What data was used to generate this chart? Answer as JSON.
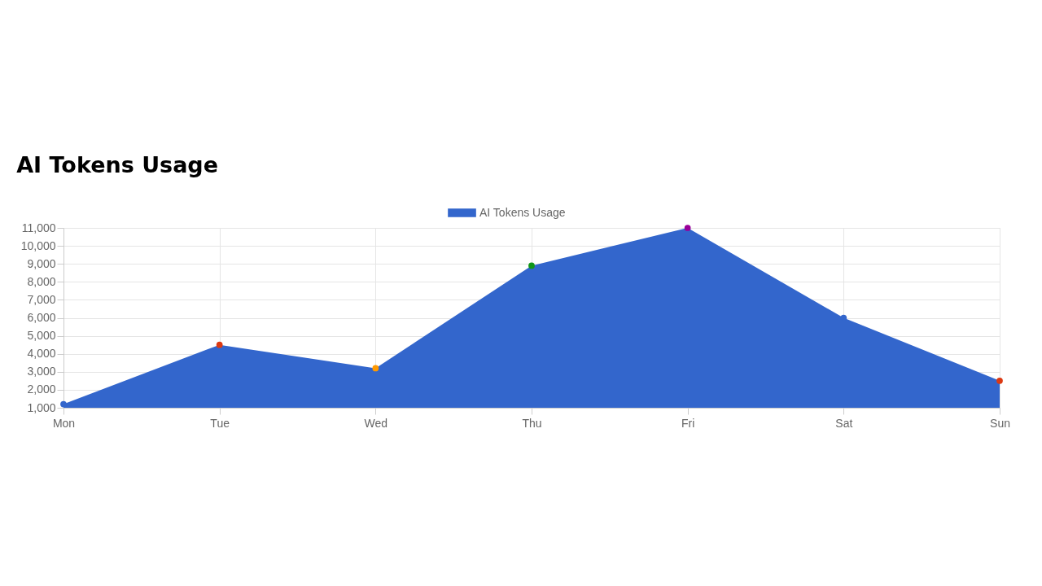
{
  "chart_data": {
    "type": "area",
    "title": "AI Tokens Usage",
    "categories": [
      "Mon",
      "Tue",
      "Wed",
      "Thu",
      "Fri",
      "Sat",
      "Sun"
    ],
    "series": [
      {
        "name": "AI Tokens Usage",
        "color": "#3366cc",
        "values": [
          1200,
          4500,
          3200,
          8900,
          11000,
          6000,
          2500
        ]
      }
    ],
    "colors": [
      "#3366cc",
      "#dc3912",
      "#ff9900",
      "#109618",
      "#990099",
      "#3366cc",
      "#dc3912"
    ],
    "ylim": [
      1000,
      11000
    ],
    "yticks": [
      {
        "value": 1000,
        "label": "1,000"
      },
      {
        "value": 2000,
        "label": "2,000"
      },
      {
        "value": 3000,
        "label": "3,000"
      },
      {
        "value": 4000,
        "label": "4,000"
      },
      {
        "value": 5000,
        "label": "5,000"
      },
      {
        "value": 6000,
        "label": "6,000"
      },
      {
        "value": 7000,
        "label": "7,000"
      },
      {
        "value": 8000,
        "label": "8,000"
      },
      {
        "value": 9000,
        "label": "9,000"
      },
      {
        "value": 10000,
        "label": "10,000"
      },
      {
        "value": 11000,
        "label": "11,000"
      }
    ],
    "grid": true,
    "legend": "top",
    "marker": "circle"
  }
}
